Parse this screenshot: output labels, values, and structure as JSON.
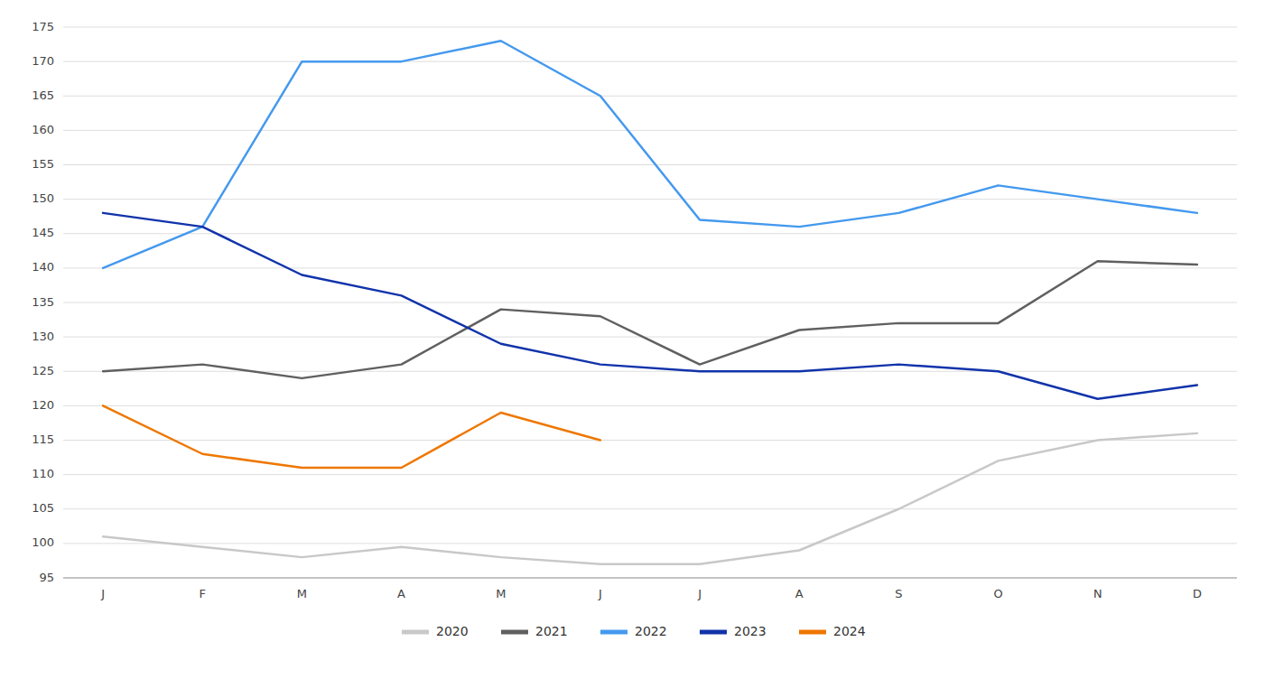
{
  "chart_data": {
    "type": "line",
    "categories": [
      "J",
      "F",
      "M",
      "A",
      "M",
      "J",
      "J",
      "A",
      "S",
      "O",
      "N",
      "D"
    ],
    "series": [
      {
        "name": "2020",
        "color": "#c8c8c8",
        "values": [
          101,
          99.5,
          98,
          99.5,
          98,
          97,
          97,
          99,
          105,
          112,
          115,
          116
        ]
      },
      {
        "name": "2021",
        "color": "#606060",
        "values": [
          125,
          126,
          124,
          126,
          134,
          133,
          126,
          131,
          132,
          132,
          141,
          140.5
        ]
      },
      {
        "name": "2022",
        "color": "#4499ee",
        "values": [
          140,
          146,
          170,
          170,
          173,
          165,
          147,
          146,
          148,
          152,
          150,
          148
        ]
      },
      {
        "name": "2023",
        "color": "#1133aa",
        "values": [
          148,
          146,
          139,
          136,
          129,
          126,
          125,
          125,
          126,
          125,
          121,
          123
        ]
      },
      {
        "name": "2024",
        "color": "#ee7700",
        "values": [
          120,
          113,
          111,
          111,
          119,
          115,
          null,
          null,
          null,
          null,
          null,
          null
        ]
      }
    ],
    "ylim": [
      95,
      175
    ],
    "yticks": [
      95,
      100,
      105,
      110,
      115,
      120,
      125,
      130,
      135,
      140,
      145,
      150,
      155,
      160,
      165,
      170,
      175
    ],
    "grid": true,
    "legend": "bottom"
  }
}
